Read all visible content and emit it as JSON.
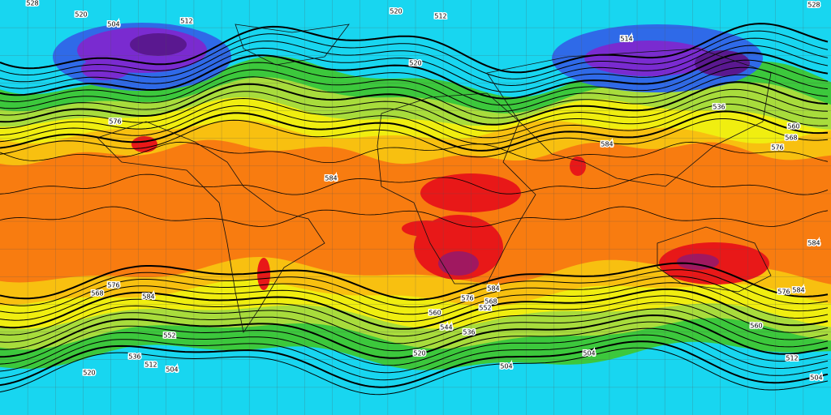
{
  "contour_labels": [
    528,
    520,
    504,
    512,
    520,
    512,
    528,
    514,
    520,
    536,
    560,
    568,
    576,
    584,
    584,
    584,
    576,
    568,
    584,
    576,
    568,
    584,
    560,
    552,
    544,
    536,
    520,
    504,
    504,
    504,
    512,
    504,
    512,
    520,
    536,
    552,
    560,
    576,
    584,
    576
  ]
}
